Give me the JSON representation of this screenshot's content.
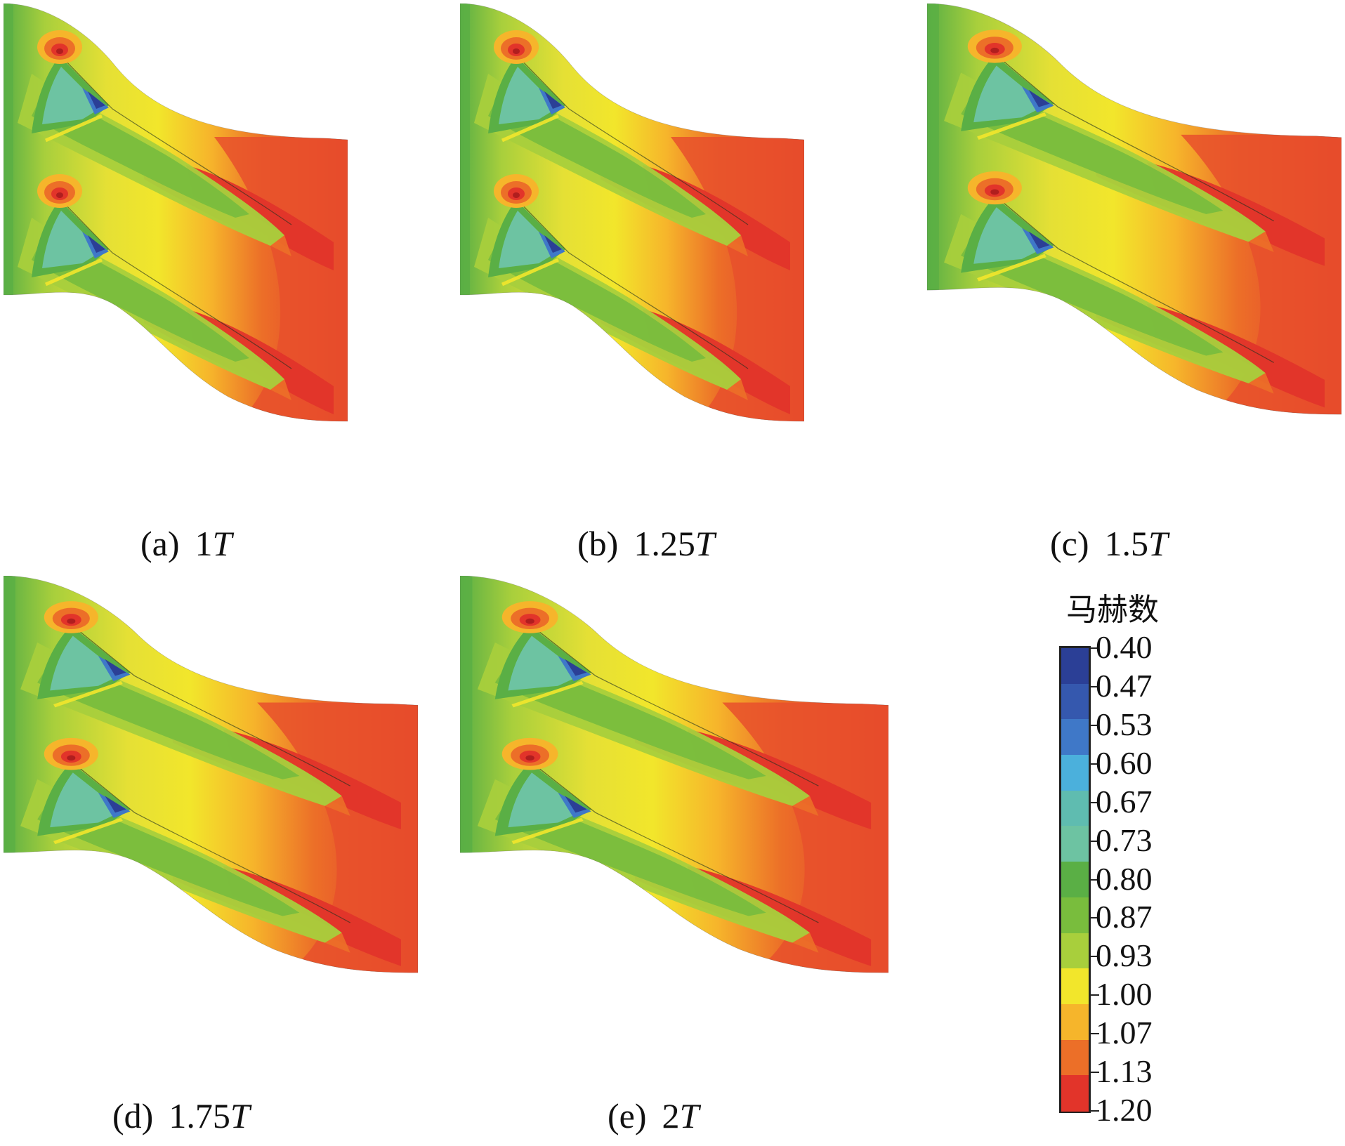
{
  "panels": [
    {
      "tag": "(a)",
      "value": "1",
      "unit": "T"
    },
    {
      "tag": "(b)",
      "value": "1.25",
      "unit": "T"
    },
    {
      "tag": "(c)",
      "value": "1.5",
      "unit": "T"
    },
    {
      "tag": "(d)",
      "value": "1.75",
      "unit": "T"
    },
    {
      "tag": "(e)",
      "value": "2",
      "unit": "T"
    }
  ],
  "legend": {
    "title": "马赫数",
    "ticks": [
      "0.40",
      "0.47",
      "0.53",
      "0.60",
      "0.67",
      "0.73",
      "0.80",
      "0.87",
      "0.93",
      "1.00",
      "1.07",
      "1.13",
      "1.20"
    ],
    "colors": [
      "#2b3f96",
      "#3558ae",
      "#3f78c8",
      "#4bb0dc",
      "#5fbcb0",
      "#6dc3a2",
      "#5aaf45",
      "#79bd3d",
      "#a8cf3c",
      "#f2e62b",
      "#f6b52b",
      "#ec6f28",
      "#e2342a"
    ]
  }
}
